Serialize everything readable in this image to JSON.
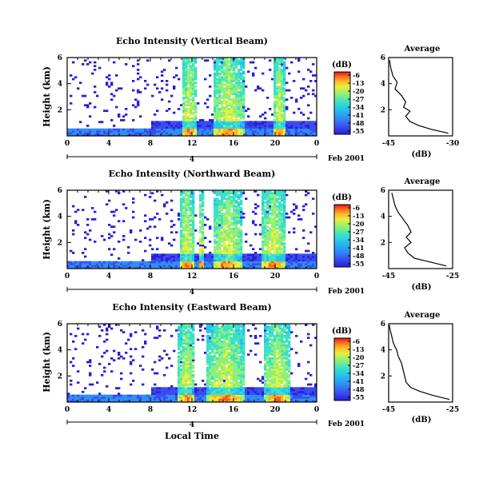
{
  "figure": {
    "xlabel": "Local Time",
    "date_label": "Feb 2001",
    "day_marker": "4",
    "colorbar_unit": "(dB)",
    "colorbar_ticks": [
      "-6",
      "-13",
      "-20",
      "-27",
      "-34",
      "-41",
      "-48",
      "-55"
    ],
    "avg_title": "Average",
    "avg_xlabel": "(dB)"
  },
  "colors": {
    "colormap": [
      "#2a1fd6",
      "#3a4cf0",
      "#2f8ff2",
      "#26c2ee",
      "#3de0c8",
      "#8df07c",
      "#e8ef3c",
      "#ffb028",
      "#ff5a1e",
      "#e0101a"
    ]
  },
  "chart_data": [
    {
      "type": "heatmap",
      "title": "Echo Intensity (Vertical Beam)",
      "ylabel": "Height (km)",
      "xlim": [
        0,
        24
      ],
      "ylim": [
        0,
        6
      ],
      "xticks": [
        "0",
        "4",
        "8",
        "12",
        "16",
        "20",
        "0"
      ],
      "yticks": [
        "2",
        "4",
        "6"
      ],
      "color_range_db": [
        -55,
        -6
      ],
      "color_ticks": [
        -6,
        -13,
        -20,
        -27,
        -34,
        -41,
        -48,
        -55
      ],
      "storm_columns_hr": [
        [
          11,
          12.5
        ],
        [
          14,
          17
        ],
        [
          19.8,
          21
        ]
      ]
    },
    {
      "type": "line",
      "title": "Average",
      "xlabel": "(dB)",
      "xlim": [
        -45,
        -30
      ],
      "xticks": [
        "-45",
        "-30"
      ],
      "ylim": [
        0,
        6
      ],
      "yticks": [
        "2",
        "4",
        "6"
      ],
      "x": [
        -31,
        -35,
        -38,
        -40,
        -41,
        -40,
        -41.5,
        -41,
        -42,
        -43.5,
        -43,
        -44,
        -44.5,
        -44.8
      ],
      "y": [
        0.2,
        0.5,
        0.8,
        1.1,
        1.5,
        1.9,
        2.2,
        2.6,
        3.1,
        3.6,
        4.1,
        4.6,
        5.2,
        5.8
      ]
    },
    {
      "type": "heatmap",
      "title": "Echo Intensity (Northward Beam)",
      "ylabel": "Height (km)",
      "xlim": [
        0,
        24
      ],
      "ylim": [
        0,
        6
      ],
      "xticks": [
        "0",
        "4",
        "8",
        "12",
        "16",
        "20",
        "0"
      ],
      "yticks": [
        "2",
        "4",
        "6"
      ],
      "color_range_db": [
        -55,
        -6
      ],
      "color_ticks": [
        -6,
        -13,
        -20,
        -27,
        -34,
        -41,
        -48,
        -55
      ],
      "storm_columns_hr": [
        [
          10.8,
          12.2
        ],
        [
          12.6,
          13.2
        ],
        [
          14,
          16.8
        ],
        [
          18.6,
          21
        ]
      ]
    },
    {
      "type": "line",
      "title": "Average",
      "xlabel": "(dB)",
      "xlim": [
        -45,
        -25
      ],
      "xticks": [
        "-45",
        "-25"
      ],
      "ylim": [
        0,
        6
      ],
      "yticks": [
        "2",
        "4",
        "6"
      ],
      "x": [
        -27,
        -32,
        -37,
        -39,
        -40,
        -38,
        -39.5,
        -38,
        -39,
        -40.5,
        -42,
        -43,
        -43.5,
        -44
      ],
      "y": [
        0.2,
        0.5,
        0.8,
        1.2,
        1.6,
        2.0,
        2.4,
        2.8,
        3.3,
        3.8,
        4.3,
        4.8,
        5.3,
        5.8
      ]
    },
    {
      "type": "heatmap",
      "title": "Echo Intensity (Eastward Beam)",
      "ylabel": "Height (km)",
      "xlim": [
        0,
        24
      ],
      "ylim": [
        0,
        6
      ],
      "xticks": [
        "0",
        "4",
        "8",
        "12",
        "16",
        "20",
        "0"
      ],
      "yticks": [
        "2",
        "4",
        "6"
      ],
      "color_range_db": [
        -55,
        -6
      ],
      "color_ticks": [
        -6,
        -13,
        -20,
        -27,
        -34,
        -41,
        -48,
        -55
      ],
      "storm_columns_hr": [
        [
          10.7,
          12.3
        ],
        [
          13.5,
          17
        ],
        [
          19,
          21.5
        ]
      ]
    },
    {
      "type": "line",
      "title": "Average",
      "xlabel": "(dB)",
      "xlim": [
        -45,
        -25
      ],
      "xticks": [
        "-45",
        "-25"
      ],
      "ylim": [
        0,
        6
      ],
      "yticks": [
        "2",
        "4",
        "6"
      ],
      "x": [
        -26,
        -31,
        -35,
        -38,
        -39.5,
        -40,
        -40.5,
        -41,
        -42,
        -42.5,
        -43.5,
        -44,
        -44.5,
        -44.8
      ],
      "y": [
        0.2,
        0.5,
        0.8,
        1.1,
        1.5,
        2.0,
        2.5,
        3.0,
        3.5,
        4.0,
        4.5,
        5.0,
        5.5,
        5.9
      ]
    }
  ]
}
